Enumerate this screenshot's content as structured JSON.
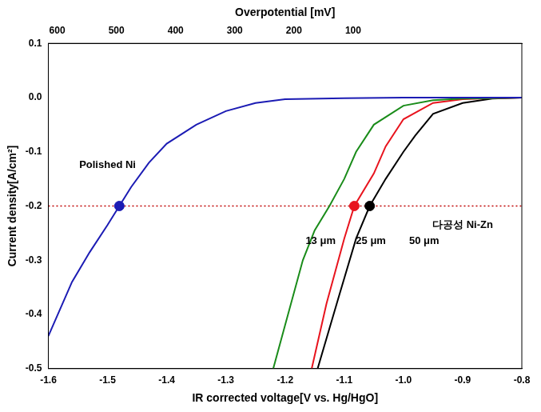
{
  "chart_data": {
    "type": "line",
    "x2_label": "Overpotential [mV]",
    "x_label": "IR corrected voltage[V vs. Hg/HgO]",
    "y_label": "Current density[A/cm²]",
    "xlim": [
      -1.6,
      -0.8
    ],
    "xticks": [
      -1.6,
      -1.5,
      -1.4,
      -1.3,
      -1.2,
      -1.1,
      {
        "value": -1,
        "label": "-1.0"
      },
      -0.9,
      -0.8
    ],
    "ylim": [
      -0.5,
      0.1
    ],
    "yticks": [
      -0.5,
      -0.4,
      -0.3,
      -0.2,
      -0.1,
      {
        "value": 0,
        "label": "0.0"
      },
      0.1
    ],
    "x2lim": [
      615,
      -185
    ],
    "x2ticks": [
      600,
      500,
      400,
      300,
      200,
      100
    ],
    "grid": false,
    "series": [
      {
        "color": "#1c1cb4",
        "line_style": "solid",
        "x": [
          -0.8,
          -1.0,
          -1.1,
          -1.2,
          -1.25,
          -1.3,
          -1.35,
          -1.4,
          -1.43,
          -1.46,
          -1.48,
          -1.5,
          -1.53,
          -1.56,
          -1.6
        ],
        "values": [
          0,
          0,
          -0.001,
          -0.003,
          -0.01,
          -0.025,
          -0.05,
          -0.085,
          -0.12,
          -0.165,
          -0.2,
          -0.235,
          -0.285,
          -0.34,
          -0.44
        ]
      },
      {
        "color": "#1a8c1a",
        "line_style": "solid",
        "x": [
          -0.8,
          -0.85,
          -0.9,
          -0.95,
          -1.0,
          -1.05,
          -1.08,
          -1.1,
          -1.125,
          -1.15,
          -1.17,
          -1.2,
          -1.22
        ],
        "values": [
          0,
          -0.001,
          -0.002,
          -0.005,
          -0.015,
          -0.05,
          -0.1,
          -0.15,
          -0.2,
          -0.245,
          -0.3,
          -0.42,
          -0.5
        ]
      },
      {
        "color": "#e8141e",
        "line_style": "solid",
        "x": [
          -0.8,
          -0.85,
          -0.9,
          -0.95,
          -1.0,
          -1.03,
          -1.05,
          -1.083,
          -1.1,
          -1.13,
          -1.155
        ],
        "values": [
          0,
          -0.001,
          -0.003,
          -0.01,
          -0.04,
          -0.09,
          -0.14,
          -0.2,
          -0.26,
          -0.38,
          -0.5
        ]
      },
      {
        "color": "#000000",
        "line_style": "solid",
        "x": [
          -0.8,
          -0.85,
          -0.9,
          -0.95,
          -0.98,
          -1.0,
          -1.03,
          -1.057,
          -1.08,
          -1.11,
          -1.145
        ],
        "values": [
          0,
          -0.002,
          -0.01,
          -0.03,
          -0.07,
          -0.1,
          -0.15,
          -0.2,
          -0.26,
          -0.37,
          -0.5
        ]
      },
      {
        "type": "scatter",
        "marker": "circle",
        "colors": [
          "#1c1cb4",
          "#e8141e",
          "#000000"
        ],
        "x": [
          -1.48,
          -1.083,
          -1.057
        ],
        "values": [
          -0.2,
          -0.2,
          -0.2
        ]
      }
    ],
    "reference_line": {
      "y": -0.2,
      "color": "#c00000",
      "line_style": "dotted"
    },
    "annotations": [
      {
        "text": "Polished Ni",
        "x": -1.5,
        "y": -0.125
      },
      {
        "text": "다공성 Ni-Zn",
        "x": -0.9,
        "y": -0.235
      },
      {
        "text": "13 μm",
        "x": -1.14,
        "y": -0.265
      },
      {
        "text": "25 μm",
        "x": -1.055,
        "y": -0.265
      },
      {
        "text": "50 μm",
        "x": -0.965,
        "y": -0.265
      }
    ]
  }
}
